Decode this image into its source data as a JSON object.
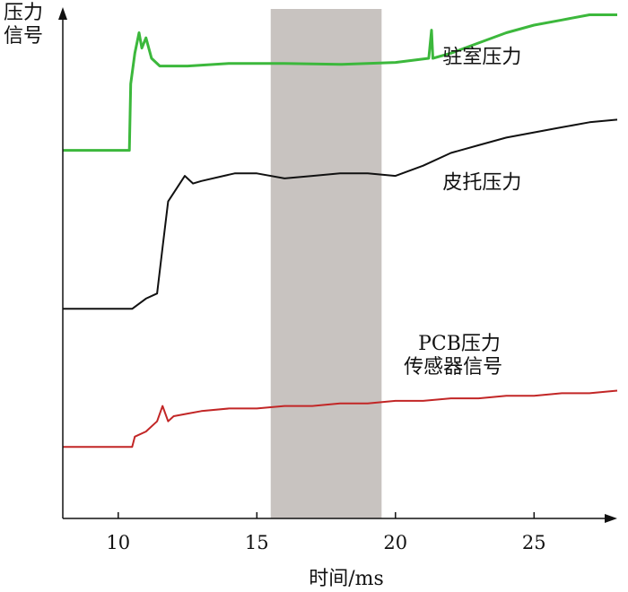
{
  "chart_data": {
    "type": "line",
    "title": "",
    "ylabel": "压力\n信号",
    "xlabel": "时间/ms",
    "xlim": [
      8,
      28
    ],
    "ylim": [
      0,
      100
    ],
    "xticks": [
      10,
      15,
      20,
      25
    ],
    "grid": false,
    "shaded_region": {
      "x": [
        15.5,
        19.5
      ],
      "color": "#c8c3c0"
    },
    "series": [
      {
        "name": "驻室压力",
        "color": "#3cb83c",
        "label_at": {
          "x": 21.7,
          "y": 89
        },
        "points": [
          [
            8,
            72
          ],
          [
            10.4,
            72
          ],
          [
            10.45,
            85
          ],
          [
            10.6,
            91
          ],
          [
            10.75,
            95
          ],
          [
            10.85,
            92
          ],
          [
            11,
            94
          ],
          [
            11.2,
            90
          ],
          [
            11.5,
            88.5
          ],
          [
            12.5,
            88.5
          ],
          [
            14,
            89
          ],
          [
            16,
            89
          ],
          [
            18,
            88.8
          ],
          [
            20,
            89.2
          ],
          [
            21.2,
            90
          ],
          [
            21.3,
            95.5
          ],
          [
            21.35,
            90
          ],
          [
            22,
            91
          ],
          [
            23,
            93
          ],
          [
            24,
            95
          ],
          [
            25,
            96.5
          ],
          [
            26,
            97.5
          ],
          [
            27,
            98.5
          ],
          [
            28,
            98.5
          ]
        ]
      },
      {
        "name": "皮托压力",
        "color": "#111111",
        "label_at": {
          "x": 21.7,
          "y": 64.5
        },
        "points": [
          [
            8,
            41
          ],
          [
            10.5,
            41
          ],
          [
            11,
            43
          ],
          [
            11.4,
            44
          ],
          [
            11.6,
            53
          ],
          [
            11.8,
            62
          ],
          [
            12.1,
            64.5
          ],
          [
            12.4,
            67
          ],
          [
            12.7,
            65.5
          ],
          [
            13,
            66
          ],
          [
            13.8,
            67
          ],
          [
            14.2,
            67.5
          ],
          [
            15,
            67.5
          ],
          [
            16,
            66.5
          ],
          [
            17,
            67
          ],
          [
            18,
            67.5
          ],
          [
            19,
            67.5
          ],
          [
            20,
            67
          ],
          [
            21,
            69
          ],
          [
            22,
            71.5
          ],
          [
            23,
            73
          ],
          [
            24,
            74.5
          ],
          [
            25,
            75.5
          ],
          [
            26,
            76.5
          ],
          [
            27,
            77.5
          ],
          [
            28,
            78
          ]
        ]
      },
      {
        "name": "PCB压力\n传感器信号",
        "color": "#c22626",
        "label_at": {
          "x": 20.3,
          "y": 33
        },
        "points": [
          [
            8,
            14
          ],
          [
            10.5,
            14
          ],
          [
            10.6,
            16
          ],
          [
            11,
            17
          ],
          [
            11.4,
            19
          ],
          [
            11.6,
            22
          ],
          [
            11.8,
            19
          ],
          [
            12,
            20
          ],
          [
            12.5,
            20.5
          ],
          [
            13,
            21
          ],
          [
            14,
            21.5
          ],
          [
            15,
            21.5
          ],
          [
            16,
            22
          ],
          [
            17,
            22
          ],
          [
            18,
            22.5
          ],
          [
            19,
            22.5
          ],
          [
            20,
            23
          ],
          [
            21,
            23
          ],
          [
            22,
            23.5
          ],
          [
            23,
            23.5
          ],
          [
            24,
            24
          ],
          [
            25,
            24
          ],
          [
            26,
            24.5
          ],
          [
            27,
            24.5
          ],
          [
            28,
            25
          ]
        ]
      }
    ]
  }
}
